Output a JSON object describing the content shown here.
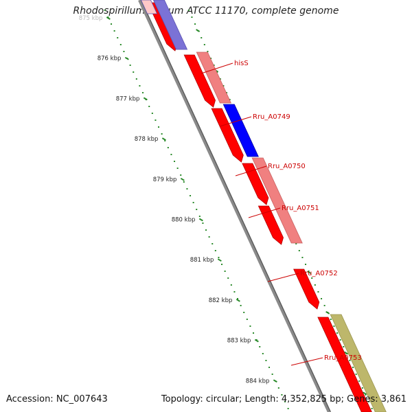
{
  "title": "Rhodospirillum rubrum ATCC 11170, complete genome",
  "footer": {
    "accession": "Accession: NC_007643",
    "summary": "Topology: circular; Length: 4,352,825 bp; Genes: 3,861"
  },
  "colors": {
    "backbone": "#8a8a8a",
    "tick": "#2a8a2a",
    "cds_red": "#ff0000",
    "cds_pink": "#f08080",
    "cds_blue": "#0000ff",
    "cds_lavender": "#7b72d6",
    "cds_olive": "#bdb76b",
    "label": "#cc0000"
  },
  "kbp_labels": [
    "875 kbp",
    "876 kbp",
    "877 kbp",
    "878 kbp",
    "879 kbp",
    "880 kbp",
    "881 kbp",
    "882 kbp",
    "883 kbp",
    "884 kbp"
  ],
  "genes": [
    {
      "label": "hisS"
    },
    {
      "label": "Rru_A0749"
    },
    {
      "label": "Rru_A0750"
    },
    {
      "label": "Rru_A0751"
    },
    {
      "label": "Rru_A0752"
    },
    {
      "label": "Rru_A0753"
    }
  ]
}
